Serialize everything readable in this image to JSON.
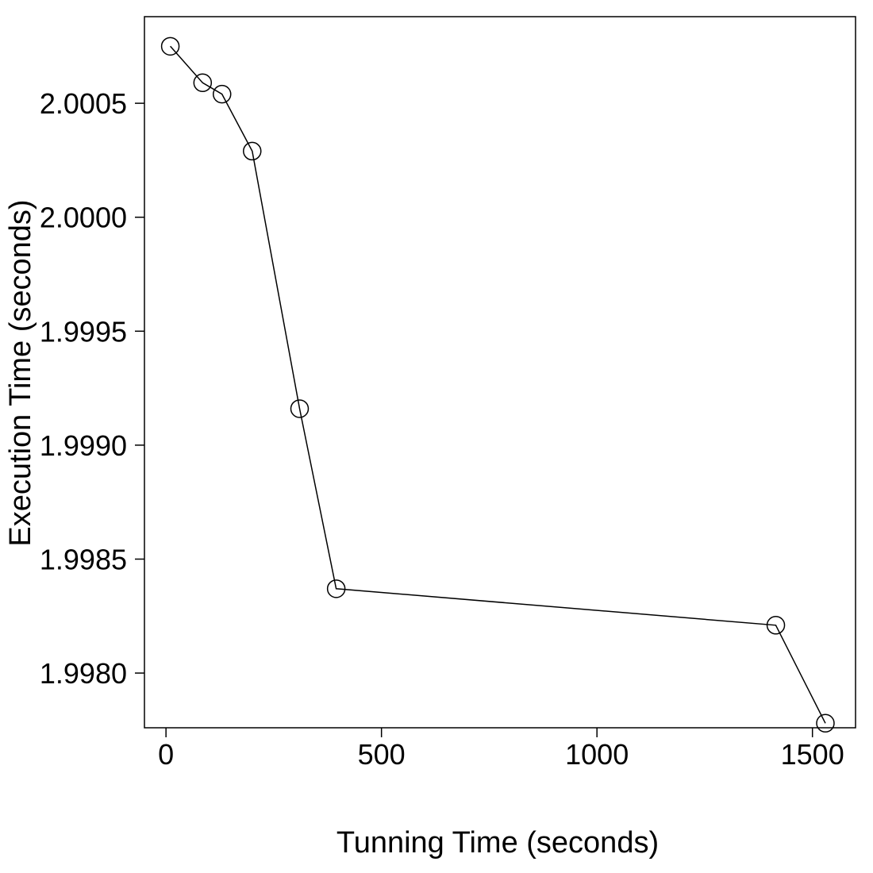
{
  "chart_data": {
    "type": "line",
    "title": "",
    "xlabel": "Tunning Time (seconds)",
    "ylabel": "Execution Time (seconds)",
    "xlim": [
      -50,
      1600
    ],
    "ylim": [
      1.99776,
      2.00088
    ],
    "x_ticks": [
      0,
      500,
      1000,
      1500
    ],
    "x_tick_labels": [
      "0",
      "500",
      "1000",
      "1500"
    ],
    "y_ticks": [
      1.998,
      1.9985,
      1.999,
      1.9995,
      2.0,
      2.0005
    ],
    "y_tick_labels": [
      "1.9980",
      "1.9985",
      "1.9990",
      "1.9995",
      "2.0000",
      "2.0005"
    ],
    "grid": false,
    "legend": "none",
    "marker": "open-circle",
    "line_color": "#000000",
    "series": [
      {
        "x": [
          10,
          85,
          130,
          200,
          310,
          395,
          1415,
          1530
        ],
        "y": [
          2.00075,
          2.00059,
          2.00054,
          2.00029,
          1.99916,
          1.99837,
          1.99821,
          1.99778
        ]
      }
    ]
  }
}
